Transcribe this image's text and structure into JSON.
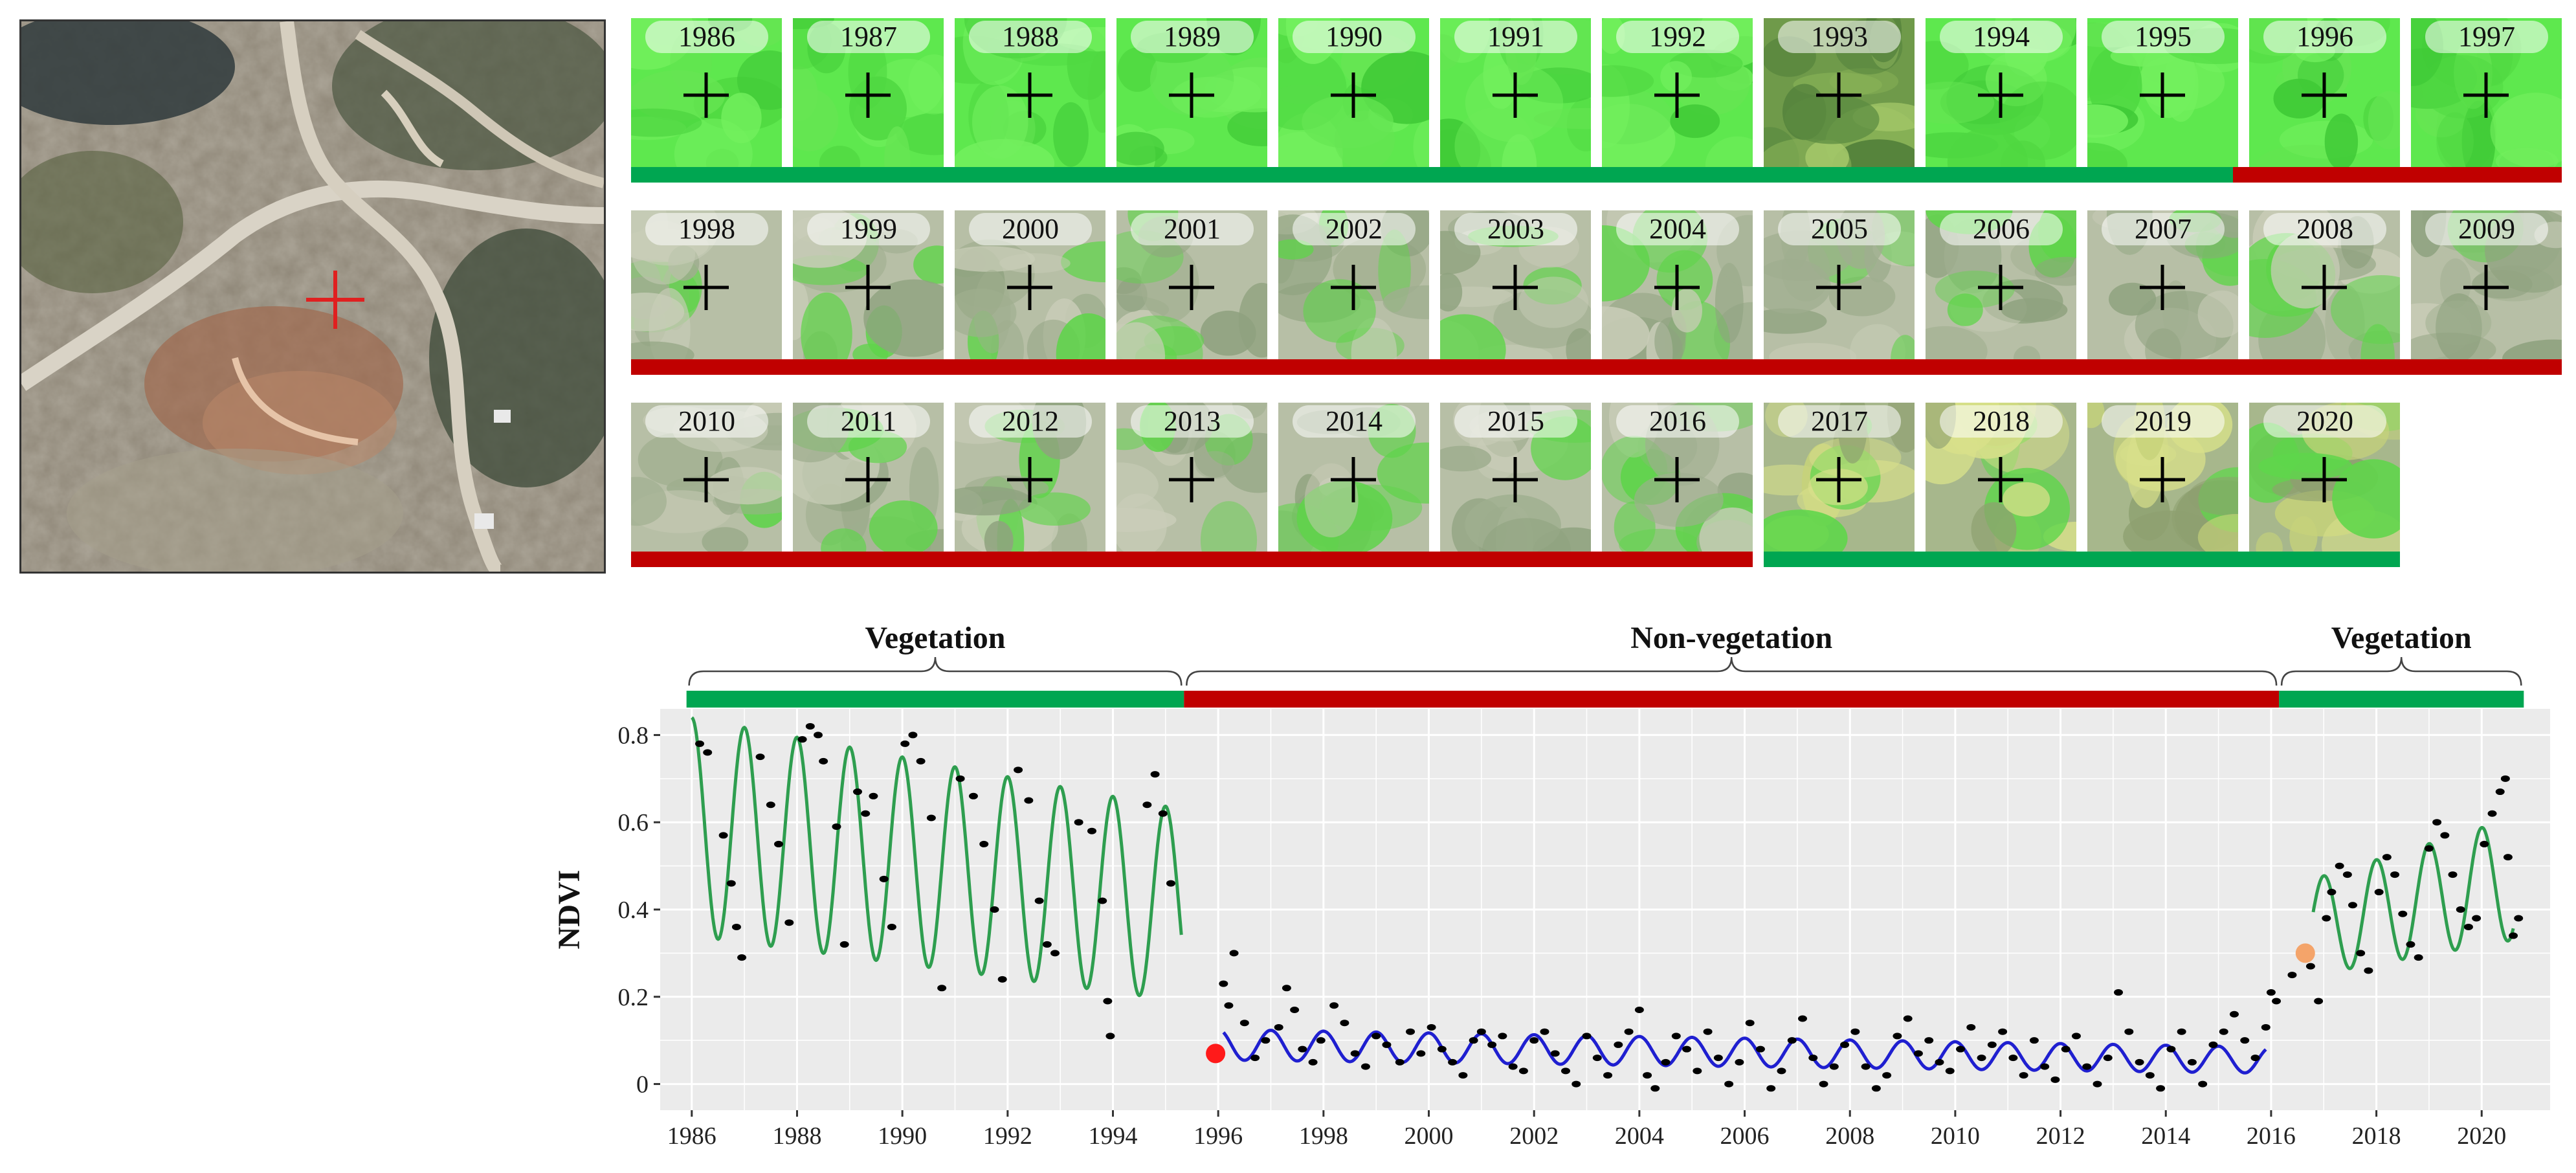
{
  "colors": {
    "vegetation": "#00a651",
    "non_vegetation": "#c00000",
    "fit_vegetation": "#2e9e4f",
    "fit_non_vegetation": "#1f1fd0",
    "break_point_1": "#ff1a1a",
    "break_point_2": "#f4a46a",
    "plot_bg": "#ebebeb",
    "grid": "#ffffff",
    "points": "#000000",
    "crosshair_aerial": "#e02020",
    "crosshair_thumb": "#000000"
  },
  "thumbnails": [
    {
      "year": "1986",
      "cover": "green"
    },
    {
      "year": "1987",
      "cover": "green"
    },
    {
      "year": "1988",
      "cover": "green"
    },
    {
      "year": "1989",
      "cover": "green"
    },
    {
      "year": "1990",
      "cover": "green"
    },
    {
      "year": "1991",
      "cover": "green"
    },
    {
      "year": "1992",
      "cover": "green"
    },
    {
      "year": "1993",
      "cover": "mixed"
    },
    {
      "year": "1994",
      "cover": "green"
    },
    {
      "year": "1995",
      "cover": "green"
    },
    {
      "year": "1996",
      "cover": "green"
    },
    {
      "year": "1997",
      "cover": "green"
    },
    {
      "year": "1998",
      "cover": "bare"
    },
    {
      "year": "1999",
      "cover": "bare"
    },
    {
      "year": "2000",
      "cover": "bare"
    },
    {
      "year": "2001",
      "cover": "bare"
    },
    {
      "year": "2002",
      "cover": "bare"
    },
    {
      "year": "2003",
      "cover": "bare"
    },
    {
      "year": "2004",
      "cover": "bare"
    },
    {
      "year": "2005",
      "cover": "bare"
    },
    {
      "year": "2006",
      "cover": "bare"
    },
    {
      "year": "2007",
      "cover": "bare"
    },
    {
      "year": "2008",
      "cover": "bare"
    },
    {
      "year": "2009",
      "cover": "bare"
    },
    {
      "year": "2010",
      "cover": "bare"
    },
    {
      "year": "2011",
      "cover": "bare"
    },
    {
      "year": "2012",
      "cover": "bare"
    },
    {
      "year": "2013",
      "cover": "bare"
    },
    {
      "year": "2014",
      "cover": "bare"
    },
    {
      "year": "2015",
      "cover": "bare"
    },
    {
      "year": "2016",
      "cover": "bare"
    },
    {
      "year": "2017",
      "cover": "regrowth"
    },
    {
      "year": "2018",
      "cover": "regrowth"
    },
    {
      "year": "2019",
      "cover": "regrowth"
    },
    {
      "year": "2020",
      "cover": "regrowth"
    }
  ],
  "thumbnail_bars": [
    {
      "row": 1,
      "from_index": 0,
      "to_index": 9.9,
      "class": "vegetation"
    },
    {
      "row": 1,
      "from_index": 9.9,
      "to_index": 12,
      "class": "non_vegetation"
    },
    {
      "row": 2,
      "from_index": 0,
      "to_index": 12,
      "class": "non_vegetation"
    },
    {
      "row": 3,
      "from_index": 0,
      "to_index": 7,
      "class": "non_vegetation"
    },
    {
      "row": 3,
      "from_index": 7,
      "to_index": 11,
      "class": "vegetation"
    }
  ],
  "chart_data": {
    "type": "scatter",
    "title": "",
    "xlabel": "",
    "ylabel": "NDVI",
    "xlim": [
      1985.4,
      2021.3
    ],
    "ylim": [
      -0.06,
      0.86
    ],
    "x_ticks": [
      1986,
      1988,
      1990,
      1992,
      1994,
      1996,
      1998,
      2000,
      2002,
      2004,
      2006,
      2008,
      2010,
      2012,
      2014,
      2016,
      2018,
      2020
    ],
    "y_ticks": [
      0,
      0.2,
      0.4,
      0.6,
      0.8
    ],
    "y_tick_labels": [
      "0",
      "0.2",
      "0.4",
      "0.6",
      "0.8"
    ],
    "grid": true,
    "segments": [
      {
        "label": "Vegetation",
        "start": 1985.9,
        "end": 1995.35,
        "class": "vegetation"
      },
      {
        "label": "Non-vegetation",
        "start": 1995.35,
        "end": 2016.15,
        "class": "non_vegetation"
      },
      {
        "label": "Vegetation",
        "start": 2016.15,
        "end": 2020.8,
        "class": "vegetation"
      }
    ],
    "fit_series": [
      {
        "class": "vegetation",
        "x_start": 1986.0,
        "x_end": 1995.3,
        "trend_start": 0.59,
        "trend_end": 0.41,
        "amp_start": 0.25,
        "amp_end": 0.22
      },
      {
        "class": "non_vegetation",
        "x_start": 1996.1,
        "x_end": 2015.9,
        "trend_start": 0.09,
        "trend_end": 0.055,
        "amp_start": 0.035,
        "amp_end": 0.03
      },
      {
        "class": "vegetation",
        "x_start": 2016.8,
        "x_end": 2020.6,
        "trend_start": 0.36,
        "trend_end": 0.47,
        "amp_start": 0.11,
        "amp_end": 0.14
      }
    ],
    "observations": [
      [
        1986.15,
        0.78
      ],
      [
        1986.3,
        0.76
      ],
      [
        1986.6,
        0.57
      ],
      [
        1986.75,
        0.46
      ],
      [
        1986.85,
        0.36
      ],
      [
        1986.95,
        0.29
      ],
      [
        1987.3,
        0.75
      ],
      [
        1987.5,
        0.64
      ],
      [
        1987.65,
        0.55
      ],
      [
        1987.85,
        0.37
      ],
      [
        1988.1,
        0.79
      ],
      [
        1988.25,
        0.82
      ],
      [
        1988.4,
        0.8
      ],
      [
        1988.5,
        0.74
      ],
      [
        1988.75,
        0.59
      ],
      [
        1988.9,
        0.32
      ],
      [
        1989.15,
        0.67
      ],
      [
        1989.3,
        0.62
      ],
      [
        1989.45,
        0.66
      ],
      [
        1989.65,
        0.47
      ],
      [
        1989.8,
        0.36
      ],
      [
        1990.05,
        0.78
      ],
      [
        1990.2,
        0.8
      ],
      [
        1990.35,
        0.74
      ],
      [
        1990.55,
        0.61
      ],
      [
        1990.75,
        0.22
      ],
      [
        1991.1,
        0.7
      ],
      [
        1991.35,
        0.66
      ],
      [
        1991.55,
        0.55
      ],
      [
        1991.75,
        0.4
      ],
      [
        1991.9,
        0.24
      ],
      [
        1992.2,
        0.72
      ],
      [
        1992.4,
        0.65
      ],
      [
        1992.6,
        0.42
      ],
      [
        1992.75,
        0.32
      ],
      [
        1992.9,
        0.3
      ],
      [
        1993.35,
        0.6
      ],
      [
        1993.6,
        0.58
      ],
      [
        1993.8,
        0.42
      ],
      [
        1993.95,
        0.11
      ],
      [
        1993.9,
        0.19
      ],
      [
        1994.65,
        0.64
      ],
      [
        1994.8,
        0.71
      ],
      [
        1994.95,
        0.62
      ],
      [
        1995.1,
        0.46
      ],
      [
        1995.95,
        0.07
      ],
      [
        1996.1,
        0.23
      ],
      [
        1996.3,
        0.3
      ],
      [
        1996.2,
        0.18
      ],
      [
        1996.5,
        0.14
      ],
      [
        1996.7,
        0.06
      ],
      [
        1996.9,
        0.1
      ],
      [
        1997.15,
        0.13
      ],
      [
        1997.3,
        0.22
      ],
      [
        1997.45,
        0.17
      ],
      [
        1997.6,
        0.08
      ],
      [
        1997.8,
        0.05
      ],
      [
        1997.95,
        0.1
      ],
      [
        1998.2,
        0.18
      ],
      [
        1998.4,
        0.14
      ],
      [
        1998.6,
        0.07
      ],
      [
        1998.8,
        0.04
      ],
      [
        1999.0,
        0.11
      ],
      [
        1999.2,
        0.09
      ],
      [
        1999.45,
        0.05
      ],
      [
        1999.65,
        0.12
      ],
      [
        1999.85,
        0.07
      ],
      [
        2000.05,
        0.13
      ],
      [
        2000.25,
        0.08
      ],
      [
        2000.45,
        0.05
      ],
      [
        2000.65,
        0.02
      ],
      [
        2000.85,
        0.1
      ],
      [
        2001.0,
        0.12
      ],
      [
        2001.2,
        0.09
      ],
      [
        2001.4,
        0.11
      ],
      [
        2001.6,
        0.04
      ],
      [
        2001.8,
        0.03
      ],
      [
        2002.0,
        0.1
      ],
      [
        2002.2,
        0.12
      ],
      [
        2002.4,
        0.07
      ],
      [
        2002.6,
        0.03
      ],
      [
        2002.8,
        0.0
      ],
      [
        2003.0,
        0.11
      ],
      [
        2003.2,
        0.06
      ],
      [
        2003.4,
        0.02
      ],
      [
        2003.6,
        0.09
      ],
      [
        2003.8,
        0.12
      ],
      [
        2004.0,
        0.17
      ],
      [
        2004.15,
        0.02
      ],
      [
        2004.3,
        -0.01
      ],
      [
        2004.5,
        0.05
      ],
      [
        2004.7,
        0.11
      ],
      [
        2004.9,
        0.08
      ],
      [
        2005.1,
        0.03
      ],
      [
        2005.3,
        0.12
      ],
      [
        2005.5,
        0.06
      ],
      [
        2005.7,
        0.0
      ],
      [
        2005.9,
        0.05
      ],
      [
        2006.1,
        0.14
      ],
      [
        2006.3,
        0.08
      ],
      [
        2006.5,
        -0.01
      ],
      [
        2006.7,
        0.03
      ],
      [
        2006.9,
        0.1
      ],
      [
        2007.1,
        0.15
      ],
      [
        2007.3,
        0.06
      ],
      [
        2007.5,
        0.0
      ],
      [
        2007.7,
        0.04
      ],
      [
        2007.9,
        0.09
      ],
      [
        2008.1,
        0.12
      ],
      [
        2008.3,
        0.04
      ],
      [
        2008.5,
        -0.01
      ],
      [
        2008.7,
        0.02
      ],
      [
        2008.9,
        0.11
      ],
      [
        2009.1,
        0.15
      ],
      [
        2009.3,
        0.07
      ],
      [
        2009.5,
        0.1
      ],
      [
        2009.7,
        0.05
      ],
      [
        2009.9,
        0.03
      ],
      [
        2010.1,
        0.08
      ],
      [
        2010.3,
        0.13
      ],
      [
        2010.5,
        0.06
      ],
      [
        2010.7,
        0.09
      ],
      [
        2010.9,
        0.12
      ],
      [
        2011.1,
        0.06
      ],
      [
        2011.3,
        0.02
      ],
      [
        2011.5,
        0.1
      ],
      [
        2011.7,
        0.04
      ],
      [
        2011.9,
        0.01
      ],
      [
        2012.1,
        0.08
      ],
      [
        2012.3,
        0.11
      ],
      [
        2012.5,
        0.04
      ],
      [
        2012.7,
        0.0
      ],
      [
        2012.9,
        0.06
      ],
      [
        2013.1,
        0.21
      ],
      [
        2013.3,
        0.12
      ],
      [
        2013.5,
        0.05
      ],
      [
        2013.7,
        0.02
      ],
      [
        2013.9,
        -0.01
      ],
      [
        2014.1,
        0.08
      ],
      [
        2014.3,
        0.12
      ],
      [
        2014.5,
        0.05
      ],
      [
        2014.7,
        0.0
      ],
      [
        2014.9,
        0.09
      ],
      [
        2015.1,
        0.12
      ],
      [
        2015.3,
        0.16
      ],
      [
        2015.5,
        0.1
      ],
      [
        2015.7,
        0.06
      ],
      [
        2015.9,
        0.13
      ],
      [
        2016.0,
        0.21
      ],
      [
        2016.1,
        0.19
      ],
      [
        2016.4,
        0.25
      ],
      [
        2016.6,
        0.3
      ],
      [
        2016.75,
        0.27
      ],
      [
        2016.9,
        0.19
      ],
      [
        2017.05,
        0.38
      ],
      [
        2017.15,
        0.44
      ],
      [
        2017.3,
        0.5
      ],
      [
        2017.45,
        0.48
      ],
      [
        2017.55,
        0.41
      ],
      [
        2017.7,
        0.3
      ],
      [
        2017.85,
        0.26
      ],
      [
        2018.05,
        0.44
      ],
      [
        2018.2,
        0.52
      ],
      [
        2018.35,
        0.48
      ],
      [
        2018.5,
        0.39
      ],
      [
        2018.65,
        0.32
      ],
      [
        2018.8,
        0.29
      ],
      [
        2019.0,
        0.54
      ],
      [
        2019.15,
        0.6
      ],
      [
        2019.3,
        0.57
      ],
      [
        2019.45,
        0.48
      ],
      [
        2019.6,
        0.4
      ],
      [
        2019.75,
        0.36
      ],
      [
        2019.9,
        0.38
      ],
      [
        2020.05,
        0.55
      ],
      [
        2020.2,
        0.62
      ],
      [
        2020.35,
        0.67
      ],
      [
        2020.45,
        0.7
      ],
      [
        2020.5,
        0.52
      ],
      [
        2020.6,
        0.34
      ],
      [
        2020.7,
        0.38
      ]
    ],
    "break_points": [
      {
        "x": 1995.95,
        "y": 0.07,
        "color_key": "break_point_1"
      },
      {
        "x": 2016.65,
        "y": 0.3,
        "color_key": "break_point_2"
      }
    ]
  }
}
